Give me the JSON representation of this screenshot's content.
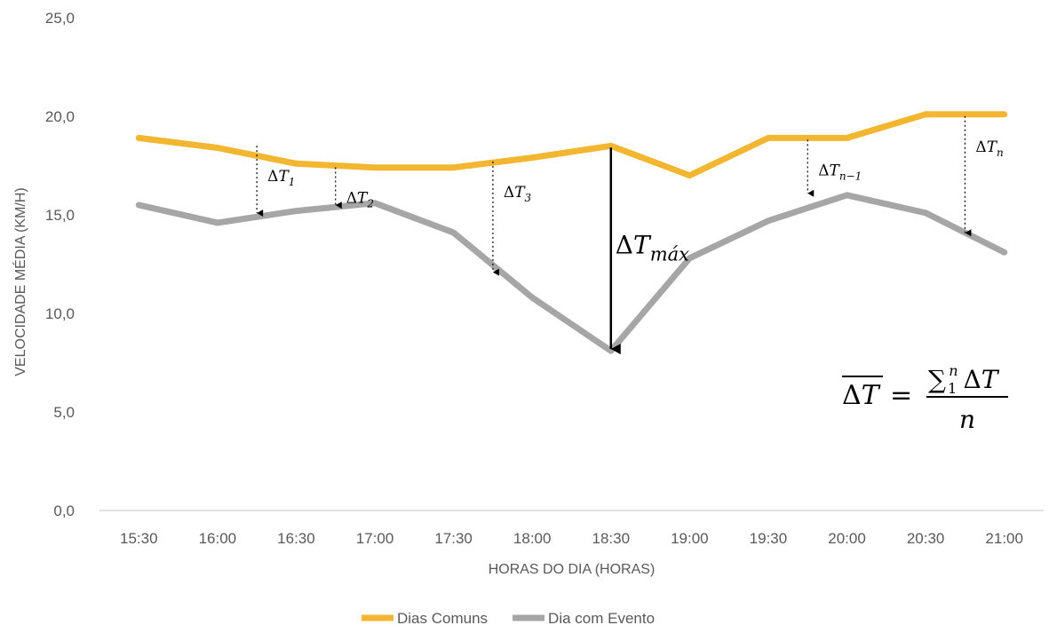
{
  "chart_data": {
    "type": "line",
    "title": "",
    "xlabel": "HORAS DO DIA (HORAS)",
    "ylabel": "VELOCIDADE MÉDIA (KM/H)",
    "ylim": [
      0,
      25
    ],
    "y_ticks": [
      "0,0",
      "5,0",
      "10,0",
      "15,0",
      "20,0",
      "25,0"
    ],
    "categories": [
      "15:30",
      "16:00",
      "16:30",
      "17:00",
      "17:30",
      "18:00",
      "18:30",
      "19:00",
      "19:30",
      "20:00",
      "20:30",
      "21:00"
    ],
    "grid": false,
    "legend_position": "bottom",
    "series": [
      {
        "name": "Dias Comuns",
        "color": "#f2b630",
        "values": [
          18.9,
          18.4,
          17.6,
          17.4,
          17.4,
          17.9,
          18.5,
          17.0,
          18.9,
          18.9,
          20.1,
          20.1
        ]
      },
      {
        "name": "Dia com Evento",
        "color": "#a6a6a6",
        "values": [
          15.5,
          14.6,
          15.2,
          15.6,
          14.1,
          10.8,
          8.1,
          12.8,
          14.7,
          16.0,
          15.1,
          13.1
        ]
      }
    ],
    "annotations": [
      {
        "label": "ΔT",
        "sub": "1",
        "x_pos": 1.5,
        "from": 18.6,
        "to": 15.0,
        "style": "dotted"
      },
      {
        "label": "ΔT",
        "sub": "2",
        "x_pos": 2.5,
        "from": 17.5,
        "to": 15.4,
        "style": "dotted"
      },
      {
        "label": "ΔT",
        "sub": "3",
        "x_pos": 4.5,
        "from": 17.8,
        "to": 12.0,
        "style": "dotted"
      },
      {
        "label": "ΔT",
        "sub": "máx",
        "x_pos": 6.0,
        "from": 18.5,
        "to": 8.1,
        "style": "solid"
      },
      {
        "label": "ΔT",
        "sub": "n−1",
        "x_pos": 8.5,
        "from": 18.9,
        "to": 16.0,
        "style": "dotted"
      },
      {
        "label": "ΔT",
        "sub": "n",
        "x_pos": 10.5,
        "from": 20.1,
        "to": 14.0,
        "style": "dotted"
      }
    ],
    "formula": {
      "lhs": "ΔT",
      "equals": "=",
      "sum_symbol": "∑",
      "sum_lower": "1",
      "sum_upper": "n",
      "numerator_term": "ΔT",
      "denominator": "n"
    }
  }
}
